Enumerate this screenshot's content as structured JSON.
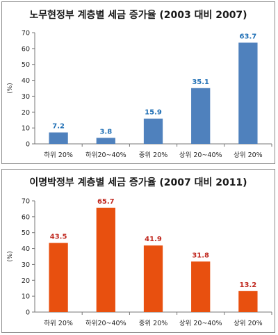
{
  "chart_data": [
    {
      "type": "bar",
      "title": "노무현정부 계층별 세금 증가율 (2003 대비 2007)",
      "ylabel": "(%)",
      "xlabel": "",
      "categories": [
        "하위 20%",
        "하위20~40%",
        "중위 20%",
        "상위 20~40%",
        "상위 20%"
      ],
      "values": [
        7.2,
        3.8,
        15.9,
        35.1,
        63.7
      ],
      "data_labels": [
        "7.2",
        "3.8",
        "15.9",
        "35.1",
        "63.7"
      ],
      "ylim": [
        0,
        70
      ],
      "yticks": [
        "0",
        "10",
        "20",
        "30",
        "40",
        "50",
        "60",
        "70"
      ],
      "grid": false,
      "bar_color": "#4f81bd",
      "label_color": "#1f6fb5"
    },
    {
      "type": "bar",
      "title": "이명박정부 계층별 세금 증가율 (2007 대비 2011)",
      "ylabel": "(%)",
      "xlabel": "",
      "categories": [
        "하위 20%",
        "하위20~40%",
        "중위 20%",
        "상위 20~40%",
        "상위 20%"
      ],
      "values": [
        43.5,
        65.7,
        41.9,
        31.8,
        13.2
      ],
      "data_labels": [
        "43.5",
        "65.7",
        "41.9",
        "31.8",
        "13.2"
      ],
      "ylim": [
        0,
        70
      ],
      "yticks": [
        "0",
        "10",
        "20",
        "30",
        "40",
        "50",
        "60",
        "70"
      ],
      "grid": false,
      "bar_color": "#e8500f",
      "label_color": "#c0281f"
    }
  ]
}
